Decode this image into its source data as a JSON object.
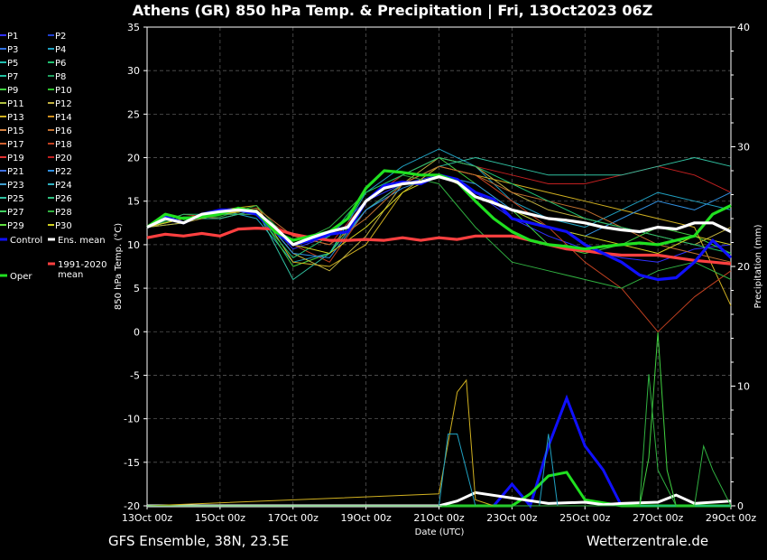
{
  "chart_data": {
    "type": "line",
    "title": "Athens  (GR)  850 hPa Temp. & Precipitation | Fri, 13Oct2023 06Z",
    "ylabel": "850 hPa Temp. (°C)",
    "y2label": "Precipitation (mm)",
    "xlabel": "Date (UTC)",
    "ylim": [
      -20,
      35
    ],
    "y2lim": [
      0,
      40
    ],
    "yticks": [
      "35",
      "30",
      "25",
      "20",
      "15",
      "10",
      "5",
      "0",
      "-5",
      "-10",
      "-15",
      "-20"
    ],
    "y2ticks": [
      "40",
      "30",
      "20",
      "10",
      "0"
    ],
    "xlim": [
      0,
      16
    ],
    "xticks": [
      "13Oct 00z",
      "15Oct 00z",
      "17Oct 00z",
      "19Oct 00z",
      "21Oct 00z",
      "23Oct 00z",
      "25Oct 00z",
      "27Oct 00z",
      "29Oct 00z"
    ],
    "grid": true,
    "legend_placement": "left",
    "footer_left": "GFS Ensemble, 38N, 23.5E",
    "footer_right": "Wetterzentrale.de",
    "legend": [
      {
        "name": "P1",
        "color": "#3030ff"
      },
      {
        "name": "P2",
        "color": "#2040d0"
      },
      {
        "name": "P3",
        "color": "#3070e0"
      },
      {
        "name": "P4",
        "color": "#20a0c0"
      },
      {
        "name": "P5",
        "color": "#20c0b0"
      },
      {
        "name": "P6",
        "color": "#20c070"
      },
      {
        "name": "P7",
        "color": "#20c0a0"
      },
      {
        "name": "P8",
        "color": "#20a060"
      },
      {
        "name": "P9",
        "color": "#40d040"
      },
      {
        "name": "P10",
        "color": "#30c030"
      },
      {
        "name": "P11",
        "color": "#b0c040"
      },
      {
        "name": "P12",
        "color": "#c0b040"
      },
      {
        "name": "P13",
        "color": "#d0b020"
      },
      {
        "name": "P14",
        "color": "#d09020"
      },
      {
        "name": "P15",
        "color": "#d08040"
      },
      {
        "name": "P16",
        "color": "#c07030"
      },
      {
        "name": "P17",
        "color": "#d06030"
      },
      {
        "name": "P18",
        "color": "#c04020"
      },
      {
        "name": "P19",
        "color": "#e03030"
      },
      {
        "name": "P20",
        "color": "#c02020"
      },
      {
        "name": "P21",
        "color": "#4070e0"
      },
      {
        "name": "P22",
        "color": "#3090e0"
      },
      {
        "name": "P23",
        "color": "#40a0d0"
      },
      {
        "name": "P24",
        "color": "#30b0c0"
      },
      {
        "name": "P25",
        "color": "#30c0a0"
      },
      {
        "name": "P26",
        "color": "#30c080"
      },
      {
        "name": "P27",
        "color": "#40d060"
      },
      {
        "name": "P28",
        "color": "#30b040"
      },
      {
        "name": "P29",
        "color": "#60e040"
      },
      {
        "name": "P30",
        "color": "#d0d020"
      },
      {
        "name": "Control",
        "color": "#1010ff"
      },
      {
        "name": "Ens. mean",
        "color": "#ffffff"
      },
      {
        "name": "1991-2020 mean",
        "color": "#ff4040"
      },
      {
        "name": "Oper",
        "color": "#20e020"
      }
    ],
    "series": [
      {
        "name": "Ens. mean",
        "color": "#ffffff",
        "x": [
          0,
          0.5,
          1,
          1.5,
          2,
          2.5,
          3,
          3.5,
          4,
          4.5,
          5,
          5.5,
          6,
          6.5,
          7,
          7.5,
          8,
          8.5,
          9,
          9.5,
          10,
          10.5,
          11,
          11.5,
          12,
          12.5,
          13,
          13.5,
          14,
          14.5,
          15,
          15.5,
          16
        ],
        "y": [
          12,
          13,
          12.5,
          13.5,
          13.8,
          14,
          13.8,
          12,
          10,
          10.8,
          11.5,
          12,
          15,
          16.5,
          17,
          17.2,
          17.8,
          17.2,
          15.5,
          14.8,
          14,
          13.5,
          13,
          12.8,
          12.5,
          12,
          11.7,
          11.5,
          12,
          11.8,
          12.5,
          12.5,
          11.5
        ]
      },
      {
        "name": "Oper",
        "color": "#20e020",
        "x": [
          0,
          0.5,
          1,
          1.5,
          2,
          2.5,
          3,
          3.5,
          4,
          4.5,
          5,
          5.5,
          6,
          6.5,
          7,
          7.5,
          8,
          8.5,
          9,
          9.5,
          10,
          10.5,
          11,
          11.5,
          12,
          12.5,
          13,
          13.5,
          14,
          14.5,
          15,
          15.5,
          16
        ],
        "y": [
          12,
          13.5,
          13,
          13.2,
          13.5,
          14.2,
          13.8,
          11.5,
          10.5,
          11,
          11.5,
          13,
          16.5,
          18.5,
          18.3,
          18,
          18,
          17.2,
          15,
          13,
          11.5,
          10.5,
          10,
          9.8,
          9.5,
          9.8,
          10,
          10.2,
          10,
          10.5,
          11,
          13.5,
          14.5
        ]
      },
      {
        "name": "Control",
        "color": "#1010ff",
        "x": [
          0,
          0.5,
          1,
          1.5,
          2,
          2.5,
          3,
          3.5,
          4,
          4.5,
          5,
          5.5,
          6,
          6.5,
          7,
          7.5,
          8,
          8.5,
          9,
          9.5,
          10,
          10.5,
          11,
          11.5,
          12,
          12.5,
          13,
          13.5,
          14,
          14.5,
          15,
          15.5,
          16
        ],
        "y": [
          12,
          13.2,
          12.5,
          13.5,
          14,
          14,
          13.5,
          11.5,
          10,
          10.5,
          11.2,
          11.5,
          15,
          16.8,
          17.2,
          17,
          18,
          17.5,
          16,
          15.2,
          13,
          12.5,
          12,
          11.5,
          10,
          9,
          8,
          6.5,
          6,
          6.2,
          8,
          10.5,
          8.5
        ]
      },
      {
        "name": "1991-2020 mean",
        "color": "#ff4040",
        "x": [
          0,
          0.5,
          1,
          1.5,
          2,
          2.5,
          3,
          3.5,
          4,
          4.5,
          5,
          5.5,
          6,
          6.5,
          7,
          7.5,
          8,
          8.5,
          9,
          9.5,
          10,
          10.5,
          11,
          11.5,
          12,
          12.5,
          13,
          13.5,
          14,
          14.5,
          15,
          15.5,
          16
        ],
        "y": [
          10.8,
          11.2,
          11,
          11.3,
          11,
          11.8,
          11.9,
          11.8,
          11.2,
          10.8,
          10.5,
          10.5,
          10.6,
          10.5,
          10.8,
          10.5,
          10.8,
          10.6,
          11,
          11,
          11,
          10.5,
          10,
          9.5,
          9.3,
          9,
          8.8,
          8.8,
          8.8,
          8.5,
          8.2,
          8,
          7.8
        ]
      },
      {
        "name": "P1",
        "color": "#3030ff",
        "x": [
          0,
          1,
          2,
          3,
          4,
          5,
          6,
          7,
          8,
          9,
          10,
          11,
          12,
          13,
          14,
          15,
          16
        ],
        "y": [
          12,
          13,
          13.5,
          14,
          9.5,
          11,
          15,
          17,
          18,
          16,
          13,
          11,
          9.5,
          8.5,
          8,
          9.5,
          10
        ]
      },
      {
        "name": "P4",
        "color": "#20a0c0",
        "x": [
          0,
          1,
          2,
          3,
          4,
          5,
          6,
          7,
          8,
          9,
          10,
          11,
          12,
          13,
          14,
          15,
          16
        ],
        "y": [
          12,
          12.5,
          14,
          13,
          8,
          9,
          16,
          19,
          21,
          19,
          15,
          13,
          12,
          14,
          16,
          15,
          14
        ]
      },
      {
        "name": "P9",
        "color": "#40d040",
        "x": [
          0,
          1,
          2,
          3,
          4,
          5,
          6,
          7,
          8,
          9,
          10,
          11,
          12,
          13,
          14,
          15,
          16
        ],
        "y": [
          12,
          13,
          13,
          14,
          7.5,
          9,
          15,
          18,
          20,
          17,
          14,
          10,
          9,
          10,
          12,
          11,
          9
        ]
      },
      {
        "name": "P13",
        "color": "#d0b020",
        "x": [
          0,
          1,
          2,
          3,
          4,
          5,
          6,
          7,
          8,
          9,
          10,
          11,
          12,
          13,
          14,
          15,
          16
        ],
        "y": [
          12,
          13,
          14,
          14.5,
          8,
          7.5,
          10,
          16,
          19,
          18,
          17,
          16,
          15,
          14,
          13,
          12,
          3
        ]
      },
      {
        "name": "P18",
        "color": "#c04020",
        "x": [
          0,
          1,
          2,
          3,
          4,
          5,
          6,
          7,
          8,
          9,
          10,
          11,
          12,
          13,
          14,
          15,
          16
        ],
        "y": [
          12,
          13.5,
          13,
          14,
          10,
          8,
          14,
          17,
          19,
          18,
          15,
          12,
          8,
          5,
          0,
          4,
          7
        ]
      },
      {
        "name": "P20",
        "color": "#c02020",
        "x": [
          0,
          1,
          2,
          3,
          4,
          5,
          6,
          7,
          8,
          9,
          10,
          11,
          12,
          13,
          14,
          15,
          16
        ],
        "y": [
          12,
          13,
          13.5,
          13.5,
          11,
          10,
          15,
          18,
          20,
          19,
          18,
          17,
          17,
          18,
          19,
          18,
          16
        ]
      },
      {
        "name": "P25",
        "color": "#30c0a0",
        "x": [
          0,
          1,
          2,
          3,
          4,
          5,
          6,
          7,
          8,
          9,
          10,
          11,
          12,
          13,
          14,
          15,
          16
        ],
        "y": [
          12,
          13,
          13,
          14,
          6,
          9,
          14,
          17,
          19,
          20,
          19,
          18,
          18,
          18,
          19,
          20,
          19
        ]
      },
      {
        "name": "P12",
        "color": "#c0b040",
        "x": [
          0,
          1,
          2,
          3,
          4,
          5,
          6,
          7,
          8,
          9,
          10,
          11,
          12,
          13,
          14,
          15,
          16
        ],
        "y": [
          12,
          12.5,
          13.5,
          14,
          9,
          7,
          11,
          17,
          20,
          19,
          16,
          14,
          13,
          12,
          11,
          10,
          12
        ]
      },
      {
        "name": "P22",
        "color": "#3090e0",
        "x": [
          0,
          1,
          2,
          3,
          4,
          5,
          6,
          7,
          8,
          9,
          10,
          11,
          12,
          13,
          14,
          15,
          16
        ],
        "y": [
          12,
          13,
          13.8,
          14,
          9,
          8.5,
          14,
          16.5,
          18,
          17,
          14,
          12,
          11,
          13,
          15,
          14,
          16
        ]
      },
      {
        "name": "P28",
        "color": "#30b040",
        "x": [
          0,
          1,
          2,
          3,
          4,
          5,
          6,
          7,
          8,
          9,
          10,
          11,
          12,
          13,
          14,
          15,
          16
        ],
        "y": [
          12,
          13.2,
          13.2,
          14.5,
          10,
          12,
          16,
          18,
          17,
          12,
          8,
          7,
          6,
          5,
          7,
          8,
          6
        ]
      },
      {
        "name": "P16",
        "color": "#c07030",
        "x": [
          0,
          1,
          2,
          3,
          4,
          5,
          6,
          7,
          8,
          9,
          10,
          11,
          12,
          13,
          14,
          15,
          16
        ],
        "y": [
          12,
          13,
          13.5,
          14.2,
          11,
          10,
          13,
          17,
          19,
          18,
          16,
          15,
          14,
          12,
          10,
          9,
          8
        ]
      },
      {
        "name": "P6",
        "color": "#20c070",
        "x": [
          0,
          1,
          2,
          3,
          4,
          5,
          6,
          7,
          8,
          9,
          10,
          11,
          12,
          13,
          14,
          15,
          16
        ],
        "y": [
          12,
          13.5,
          13.5,
          13.5,
          8.5,
          11,
          16,
          18,
          20,
          19,
          17,
          15,
          13,
          12,
          11,
          10,
          9
        ]
      },
      {
        "name": "P30",
        "color": "#d0d020",
        "x": [
          0,
          1,
          2,
          3,
          4,
          5,
          6,
          7,
          8,
          9,
          10,
          11,
          12,
          13,
          14,
          15,
          16
        ],
        "y": [
          12,
          13,
          13.5,
          14,
          10,
          9,
          12,
          16,
          18,
          16,
          14,
          12,
          11,
          10,
          9,
          11,
          10
        ]
      }
    ],
    "precipitation": [
      {
        "name": "Control",
        "color": "#1010ff",
        "x": [
          0,
          9.5,
          10,
          10.5,
          11,
          11.5,
          12,
          12.5,
          13,
          16
        ],
        "y": [
          0,
          0,
          1.8,
          0,
          5,
          9,
          5,
          3,
          0,
          0
        ]
      },
      {
        "name": "Oper",
        "color": "#20e020",
        "x": [
          0,
          9.5,
          10,
          10.5,
          11,
          11.5,
          12,
          13,
          16
        ],
        "y": [
          0,
          0,
          0,
          1,
          2.5,
          2.8,
          0.5,
          0,
          0
        ]
      },
      {
        "name": "Ens. mean",
        "color": "#ffffff",
        "x": [
          0,
          8,
          8.5,
          9,
          11,
          12,
          12.5,
          13,
          14,
          14.5,
          15,
          16
        ],
        "y": [
          0,
          0,
          0.4,
          1.1,
          0.2,
          0.3,
          0.1,
          0.2,
          0.3,
          0.9,
          0.2,
          0.4
        ]
      },
      {
        "name": "P13",
        "color": "#d0b020",
        "x": [
          0,
          8,
          8.5,
          8.75,
          9,
          9.5,
          16
        ],
        "y": [
          0,
          1,
          9.5,
          10.5,
          0.5,
          0,
          0
        ]
      },
      {
        "name": "P9",
        "color": "#40d040",
        "x": [
          0,
          13.5,
          13.75,
          14,
          14.25,
          14.5,
          16
        ],
        "y": [
          0,
          0,
          4,
          14.5,
          3,
          0,
          0
        ]
      },
      {
        "name": "P4",
        "color": "#20a0c0",
        "x": [
          0,
          8,
          8.25,
          8.5,
          9,
          10.75,
          11,
          11.25,
          16
        ],
        "y": [
          0,
          0,
          6,
          6,
          0,
          0,
          6,
          0,
          0
        ]
      },
      {
        "name": "P28",
        "color": "#30b040",
        "x": [
          0,
          13.5,
          13.75,
          14,
          14.5,
          15,
          15.25,
          15.5,
          16
        ],
        "y": [
          0,
          0,
          11,
          3,
          0,
          0,
          5,
          3,
          0
        ]
      }
    ]
  }
}
